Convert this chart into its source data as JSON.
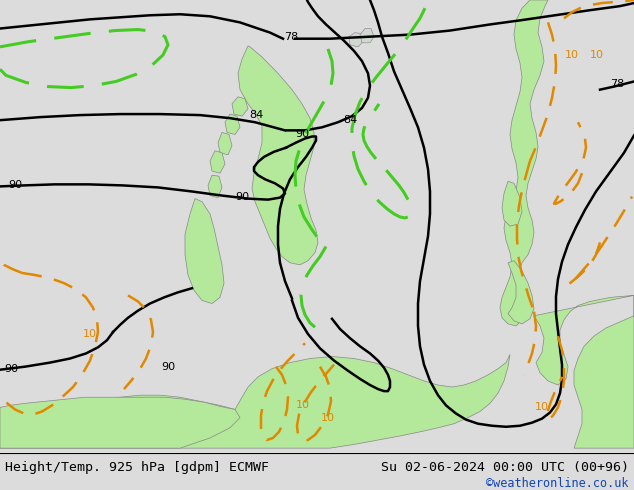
{
  "title_left": "Height/Temp. 925 hPa [gdpm] ECMWF",
  "title_right": "Su 02-06-2024 00:00 UTC (00+96)",
  "credit": "©weatheronline.co.uk",
  "bg_color": "#dcdcdc",
  "land_green": "#b4e89a",
  "coast_color": "#888888",
  "black_contour": "#000000",
  "orange_contour": "#e08800",
  "green_contour": "#44cc22",
  "credit_color": "#1144bb",
  "figsize": [
    6.34,
    4.9
  ],
  "dpi": 100
}
